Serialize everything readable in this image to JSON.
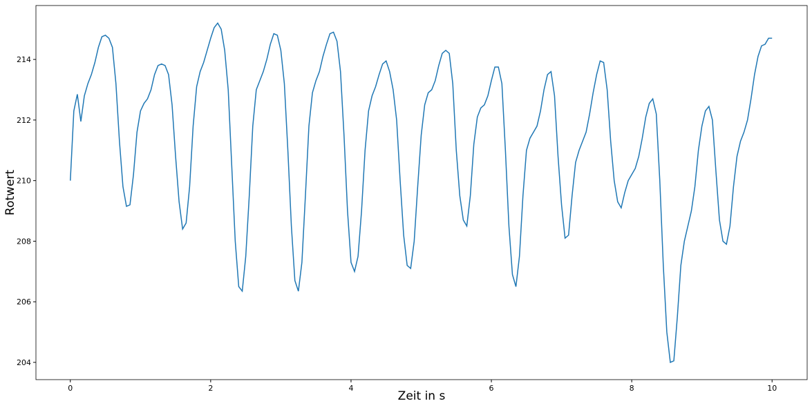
{
  "chart_data": {
    "type": "line",
    "x_label": "Zeit in s",
    "y_label": "Rotwert",
    "xlim": [
      -0.49,
      10.5
    ],
    "ylim": [
      203.43,
      215.78
    ],
    "xticks": [
      0,
      2,
      4,
      6,
      8,
      10
    ],
    "yticks": [
      204,
      206,
      208,
      210,
      212,
      214
    ],
    "x": [
      0,
      0.05,
      0.1,
      0.15,
      0.2,
      0.25,
      0.3,
      0.35,
      0.4,
      0.45,
      0.5,
      0.55,
      0.6,
      0.65,
      0.7,
      0.75,
      0.8,
      0.85,
      0.9,
      0.95,
      1,
      1.05,
      1.1,
      1.15,
      1.2,
      1.25,
      1.3,
      1.35,
      1.4,
      1.45,
      1.5,
      1.55,
      1.6,
      1.65,
      1.7,
      1.75,
      1.8,
      1.85,
      1.9,
      1.95,
      2,
      2.05,
      2.1,
      2.15,
      2.2,
      2.25,
      2.3,
      2.35,
      2.4,
      2.45,
      2.5,
      2.55,
      2.6,
      2.65,
      2.7,
      2.75,
      2.8,
      2.85,
      2.9,
      2.95,
      3,
      3.05,
      3.1,
      3.15,
      3.2,
      3.25,
      3.3,
      3.35,
      3.4,
      3.45,
      3.5,
      3.55,
      3.6,
      3.65,
      3.7,
      3.75,
      3.8,
      3.85,
      3.9,
      3.95,
      4,
      4.05,
      4.1,
      4.15,
      4.2,
      4.25,
      4.3,
      4.35,
      4.4,
      4.45,
      4.5,
      4.55,
      4.6,
      4.65,
      4.7,
      4.75,
      4.8,
      4.85,
      4.9,
      4.95,
      5,
      5.05,
      5.1,
      5.15,
      5.2,
      5.25,
      5.3,
      5.35,
      5.4,
      5.45,
      5.5,
      5.55,
      5.6,
      5.65,
      5.7,
      5.75,
      5.8,
      5.85,
      5.9,
      5.95,
      6,
      6.05,
      6.1,
      6.15,
      6.2,
      6.25,
      6.3,
      6.35,
      6.4,
      6.45,
      6.5,
      6.55,
      6.6,
      6.65,
      6.7,
      6.75,
      6.8,
      6.85,
      6.9,
      6.95,
      7,
      7.05,
      7.1,
      7.15,
      7.2,
      7.25,
      7.3,
      7.35,
      7.4,
      7.45,
      7.5,
      7.55,
      7.6,
      7.65,
      7.7,
      7.75,
      7.8,
      7.85,
      7.9,
      7.95,
      8,
      8.05,
      8.1,
      8.15,
      8.2,
      8.25,
      8.3,
      8.35,
      8.4,
      8.45,
      8.5,
      8.55,
      8.6,
      8.65,
      8.7,
      8.75,
      8.8,
      8.85,
      8.9,
      8.95,
      9,
      9.05,
      9.1,
      9.15,
      9.2,
      9.25,
      9.3,
      9.35,
      9.4,
      9.45,
      9.5,
      9.55,
      9.6,
      9.65,
      9.7,
      9.75,
      9.8,
      9.85,
      9.9,
      9.95,
      10
    ],
    "series": [
      {
        "color": "#1f77b4",
        "values": [
          210.0,
          212.3,
          212.85,
          211.95,
          212.8,
          213.2,
          213.5,
          213.9,
          214.4,
          214.75,
          214.8,
          214.7,
          214.4,
          213.2,
          211.3,
          209.8,
          209.15,
          209.2,
          210.2,
          211.6,
          212.3,
          212.55,
          212.7,
          213.0,
          213.5,
          213.8,
          213.85,
          213.8,
          213.5,
          212.5,
          210.8,
          209.3,
          208.4,
          208.6,
          209.8,
          211.8,
          213.1,
          213.6,
          213.9,
          214.3,
          214.7,
          215.05,
          215.2,
          215.0,
          214.3,
          213.0,
          210.5,
          208.0,
          206.5,
          206.35,
          207.5,
          209.5,
          211.8,
          213.0,
          213.3,
          213.6,
          214.0,
          214.5,
          214.85,
          214.8,
          214.3,
          213.2,
          211.0,
          208.5,
          206.7,
          206.35,
          207.3,
          209.5,
          211.8,
          212.9,
          213.3,
          213.6,
          214.1,
          214.5,
          214.85,
          214.9,
          214.6,
          213.6,
          211.5,
          209.0,
          207.3,
          207.0,
          207.5,
          209.0,
          211.0,
          212.3,
          212.8,
          213.1,
          213.5,
          213.85,
          213.95,
          213.6,
          213.0,
          212.0,
          210.0,
          208.2,
          207.2,
          207.1,
          208.0,
          209.8,
          211.5,
          212.5,
          212.9,
          213.0,
          213.3,
          213.8,
          214.2,
          214.3,
          214.2,
          213.2,
          211.0,
          209.5,
          208.7,
          208.5,
          209.5,
          211.2,
          212.1,
          212.4,
          212.5,
          212.8,
          213.3,
          213.75,
          213.75,
          213.2,
          211.0,
          208.5,
          206.9,
          206.5,
          207.5,
          209.5,
          211.0,
          211.4,
          211.6,
          211.8,
          212.3,
          213.0,
          213.5,
          213.6,
          212.8,
          210.8,
          209.2,
          208.1,
          208.2,
          209.5,
          210.6,
          211.0,
          211.3,
          211.6,
          212.2,
          212.9,
          213.5,
          213.95,
          213.9,
          213.0,
          211.3,
          210.0,
          209.3,
          209.1,
          209.6,
          210.0,
          210.2,
          210.4,
          210.8,
          211.4,
          212.1,
          212.55,
          212.7,
          212.2,
          210.0,
          207.2,
          205.0,
          204.0,
          204.05,
          205.5,
          207.2,
          208.0,
          208.5,
          209.0,
          209.8,
          211.0,
          211.8,
          212.3,
          212.45,
          212.0,
          210.3,
          208.7,
          208.0,
          207.9,
          208.5,
          209.8,
          210.8,
          211.3,
          211.6,
          212.0,
          212.7,
          213.5,
          214.1,
          214.45,
          214.5,
          214.7,
          214.7
        ]
      }
    ]
  }
}
